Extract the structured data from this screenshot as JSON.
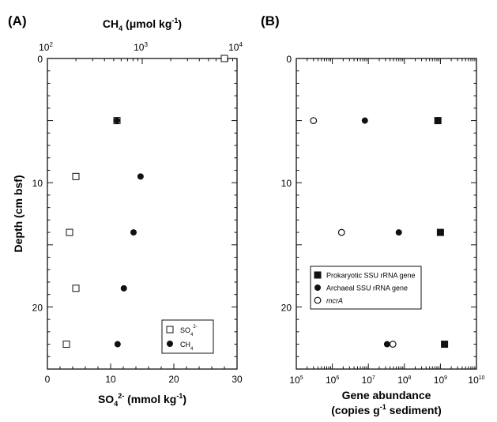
{
  "chart_data": [
    {
      "panel_label": "(A)",
      "type": "scatter",
      "ylabel": "Depth (cm bsf)",
      "ylim": [
        0,
        25
      ],
      "y_inverted": true,
      "yticks": [
        "0",
        "10",
        "20"
      ],
      "x_bottom": {
        "label_parts": [
          "SO",
          "4",
          "2-",
          " (mmol kg",
          "-1",
          ")"
        ],
        "lim": [
          0,
          30
        ],
        "ticks": [
          "0",
          "10",
          "20",
          "30"
        ]
      },
      "x_top": {
        "label_parts": [
          "CH",
          "4",
          " (μmol kg",
          "-1",
          ")"
        ],
        "scale": "log",
        "lim": [
          100,
          10000
        ],
        "ticks": [
          {
            "base": "10",
            "exp": "2"
          },
          {
            "base": "10",
            "exp": "3"
          },
          {
            "base": "10",
            "exp": "4"
          }
        ]
      },
      "legend_position": "bottom-right",
      "series": [
        {
          "name_parts": [
            "SO",
            "4",
            "2-"
          ],
          "marker": "open-square",
          "axis": "bottom",
          "points": [
            [
              28,
              0
            ],
            [
              11,
              5
            ],
            [
              4.5,
              9.5
            ],
            [
              3.5,
              14
            ],
            [
              4.5,
              18.5
            ],
            [
              3,
              23
            ]
          ]
        },
        {
          "name_parts": [
            "CH",
            "4"
          ],
          "marker": "filled-circle",
          "axis": "top",
          "points": [
            [
              540,
              5
            ],
            [
              960,
              9.5
            ],
            [
              810,
              14
            ],
            [
              640,
              18.5
            ],
            [
              550,
              23
            ]
          ]
        }
      ]
    },
    {
      "panel_label": "(B)",
      "type": "scatter",
      "ylim": [
        0,
        25
      ],
      "y_inverted": true,
      "yticks": [
        "0",
        "10",
        "20"
      ],
      "x_bottom": {
        "label_lines": [
          [
            "Gene abundance"
          ],
          [
            "(copies g",
            "-1",
            " sediment)"
          ]
        ],
        "scale": "log",
        "lim": [
          100000,
          10000000000
        ],
        "ticks": [
          {
            "base": "10",
            "exp": "5"
          },
          {
            "base": "10",
            "exp": "6"
          },
          {
            "base": "10",
            "exp": "7"
          },
          {
            "base": "10",
            "exp": "8"
          },
          {
            "base": "10",
            "exp": "9"
          },
          {
            "base": "10",
            "exp": "10"
          }
        ]
      },
      "legend_position": "lower-left",
      "series": [
        {
          "name": "Prokaryotic SSU rRNA gene",
          "marker": "filled-square",
          "points": [
            [
              850000000,
              5
            ],
            [
              1000000000,
              14
            ],
            [
              1300000000,
              23
            ]
          ]
        },
        {
          "name": "Archaeal SSU rRNA gene",
          "marker": "filled-circle",
          "points": [
            [
              8000000,
              5
            ],
            [
              70000000,
              14
            ],
            [
              33000000,
              23
            ]
          ]
        },
        {
          "name": "mcrA",
          "name_style": "italic",
          "marker": "open-circle",
          "points": [
            [
              300000,
              5
            ],
            [
              1800000,
              14
            ],
            [
              48000000,
              23
            ]
          ]
        }
      ]
    }
  ]
}
